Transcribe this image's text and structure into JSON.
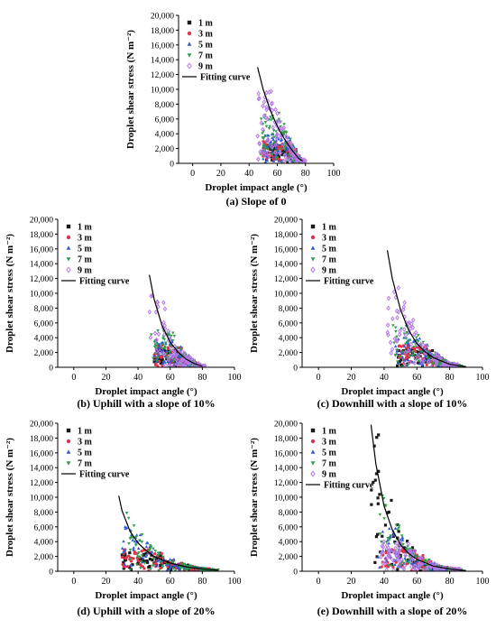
{
  "chart_data": [
    {
      "type": "scatter",
      "caption": "(a) Slope of 0",
      "xlabel": "Droplet impact angle (°)",
      "ylabel": "Droplet shear stress (N m⁻²)",
      "xlim": [
        -10,
        100
      ],
      "ylim": [
        0,
        20000
      ],
      "xticks": [
        0,
        20,
        40,
        60,
        80,
        100
      ],
      "yticks": [
        0,
        2000,
        4000,
        6000,
        8000,
        10000,
        12000,
        14000,
        16000,
        18000,
        20000
      ],
      "legend_position": "top-left",
      "series": [
        {
          "name": "1 m",
          "marker": "square",
          "color": "#1a1a1a",
          "x_range": [
            50,
            78
          ],
          "y_max": 2500
        },
        {
          "name": "3 m",
          "marker": "circle",
          "color": "#e0334a",
          "x_range": [
            50,
            78
          ],
          "y_max": 3000
        },
        {
          "name": "5 m",
          "marker": "triangle-up",
          "color": "#2f5bd6",
          "x_range": [
            50,
            78
          ],
          "y_max": 4000
        },
        {
          "name": "7 m",
          "marker": "triangle-down",
          "color": "#2e9e4a",
          "x_range": [
            48,
            78
          ],
          "y_max": 7000
        },
        {
          "name": "9 m",
          "marker": "diamond",
          "color": "#b67be8",
          "x_range": [
            46,
            80
          ],
          "y_max": 10000
        }
      ],
      "fitting_curve": {
        "name": "Fitting curve",
        "x": [
          46,
          50,
          55,
          60,
          65,
          70,
          75,
          78
        ],
        "y": [
          13000,
          10000,
          7200,
          5000,
          3300,
          1900,
          700,
          300
        ]
      }
    },
    {
      "type": "scatter",
      "caption": "(b) Uphill with a slope of 10%",
      "xlabel": "Droplet impact angle (°)",
      "ylabel": "Droplet shear stress (N m⁻²)",
      "xlim": [
        -10,
        100
      ],
      "ylim": [
        0,
        20000
      ],
      "xticks": [
        0,
        20,
        40,
        60,
        80,
        100
      ],
      "yticks": [
        0,
        2000,
        4000,
        6000,
        8000,
        10000,
        12000,
        14000,
        16000,
        18000,
        20000
      ],
      "legend_position": "top-left",
      "series": [
        {
          "name": "1 m",
          "marker": "square",
          "color": "#1a1a1a",
          "x_range": [
            50,
            80
          ],
          "y_max": 2500
        },
        {
          "name": "3 m",
          "marker": "circle",
          "color": "#e0334a",
          "x_range": [
            50,
            80
          ],
          "y_max": 3000
        },
        {
          "name": "5 m",
          "marker": "triangle-up",
          "color": "#2f5bd6",
          "x_range": [
            50,
            80
          ],
          "y_max": 3500
        },
        {
          "name": "7 m",
          "marker": "triangle-down",
          "color": "#2e9e4a",
          "x_range": [
            48,
            80
          ],
          "y_max": 5000
        },
        {
          "name": "9 m",
          "marker": "diamond",
          "color": "#b67be8",
          "x_range": [
            47,
            82
          ],
          "y_max": 10000
        }
      ],
      "fitting_curve": {
        "name": "Fitting curve",
        "x": [
          47,
          50,
          55,
          60,
          65,
          70,
          75,
          80
        ],
        "y": [
          12500,
          9200,
          5600,
          3400,
          2000,
          1100,
          500,
          150
        ]
      }
    },
    {
      "type": "scatter",
      "caption": "(c) Downhill with a slope of 10%",
      "xlabel": "Droplet impact angle (°)",
      "ylabel": "Droplet shear stress (N m⁻²)",
      "xlim": [
        -10,
        100
      ],
      "ylim": [
        0,
        20000
      ],
      "xticks": [
        0,
        20,
        40,
        60,
        80,
        100
      ],
      "yticks": [
        0,
        2000,
        4000,
        6000,
        8000,
        10000,
        12000,
        14000,
        16000,
        18000,
        20000
      ],
      "legend_position": "top-left",
      "series": [
        {
          "name": "1 m",
          "marker": "square",
          "color": "#1a1a1a",
          "x_range": [
            48,
            85
          ],
          "y_max": 2500
        },
        {
          "name": "3 m",
          "marker": "circle",
          "color": "#e0334a",
          "x_range": [
            48,
            85
          ],
          "y_max": 3000
        },
        {
          "name": "5 m",
          "marker": "triangle-up",
          "color": "#2f5bd6",
          "x_range": [
            46,
            85
          ],
          "y_max": 4000
        },
        {
          "name": "7 m",
          "marker": "triangle-down",
          "color": "#2e9e4a",
          "x_range": [
            45,
            88
          ],
          "y_max": 6000
        },
        {
          "name": "9 m",
          "marker": "diamond",
          "color": "#b67be8",
          "x_range": [
            42,
            85
          ],
          "y_max": 12000
        }
      ],
      "fitting_curve": {
        "name": "Fitting curve",
        "x": [
          42,
          45,
          50,
          55,
          60,
          65,
          70,
          80,
          90
        ],
        "y": [
          15800,
          12000,
          7800,
          5000,
          3200,
          2100,
          1300,
          400,
          100
        ]
      }
    },
    {
      "type": "scatter",
      "caption": "(d) Uphill with a slope of 20%",
      "xlabel": "Droplet impact angle (°)",
      "ylabel": "Droplet shear stress (N m⁻²)",
      "xlim": [
        -10,
        100
      ],
      "ylim": [
        0,
        20000
      ],
      "xticks": [
        0,
        20,
        40,
        60,
        80,
        100
      ],
      "yticks": [
        0,
        2000,
        4000,
        6000,
        8000,
        10000,
        12000,
        14000,
        16000,
        18000,
        20000
      ],
      "legend_position": "top-left",
      "series": [
        {
          "name": "1 m",
          "marker": "square",
          "color": "#1a1a1a",
          "x_range": [
            30,
            85
          ],
          "y_max": 2500
        },
        {
          "name": "3 m",
          "marker": "circle",
          "color": "#e0334a",
          "x_range": [
            30,
            85
          ],
          "y_max": 3000
        },
        {
          "name": "5 m",
          "marker": "triangle-up",
          "color": "#2f5bd6",
          "x_range": [
            30,
            88
          ],
          "y_max": 6000
        },
        {
          "name": "7 m",
          "marker": "triangle-down",
          "color": "#2e9e4a",
          "x_range": [
            33,
            90
          ],
          "y_max": 10500
        }
      ],
      "fitting_curve": {
        "name": "Fitting curve",
        "x": [
          28,
          30,
          35,
          40,
          45,
          50,
          60,
          70,
          80,
          90
        ],
        "y": [
          10200,
          8200,
          5400,
          3800,
          2800,
          2000,
          1100,
          600,
          300,
          150
        ]
      }
    },
    {
      "type": "scatter",
      "caption": "(e) Downhill with a slope of 20%",
      "xlabel": "Droplet impact angle (°)",
      "ylabel": "Droplet shear stress (N m⁻²)",
      "xlim": [
        -10,
        100
      ],
      "ylim": [
        0,
        20000
      ],
      "xticks": [
        0,
        20,
        40,
        60,
        80,
        100
      ],
      "yticks": [
        0,
        2000,
        4000,
        6000,
        8000,
        10000,
        12000,
        14000,
        16000,
        18000,
        20000
      ],
      "legend_position": "top-left",
      "series": [
        {
          "name": "1 m",
          "marker": "square",
          "color": "#1a1a1a",
          "x_range": [
            32,
            85
          ],
          "y_max": 19000
        },
        {
          "name": "3 m",
          "marker": "circle",
          "color": "#e0334a",
          "x_range": [
            38,
            85
          ],
          "y_max": 3000
        },
        {
          "name": "5 m",
          "marker": "triangle-up",
          "color": "#2f5bd6",
          "x_range": [
            36,
            85
          ],
          "y_max": 6000
        },
        {
          "name": "7 m",
          "marker": "triangle-down",
          "color": "#2e9e4a",
          "x_range": [
            36,
            88
          ],
          "y_max": 12000
        },
        {
          "name": "9 m",
          "marker": "diamond",
          "color": "#b67be8",
          "x_range": [
            38,
            88
          ],
          "y_max": 4000
        }
      ],
      "fitting_curve": {
        "name": "Fitting curve",
        "x": [
          32,
          35,
          40,
          45,
          50,
          55,
          60,
          70,
          80,
          90
        ],
        "y": [
          19800,
          14500,
          8800,
          5600,
          3600,
          2400,
          1600,
          700,
          300,
          100
        ]
      }
    }
  ]
}
